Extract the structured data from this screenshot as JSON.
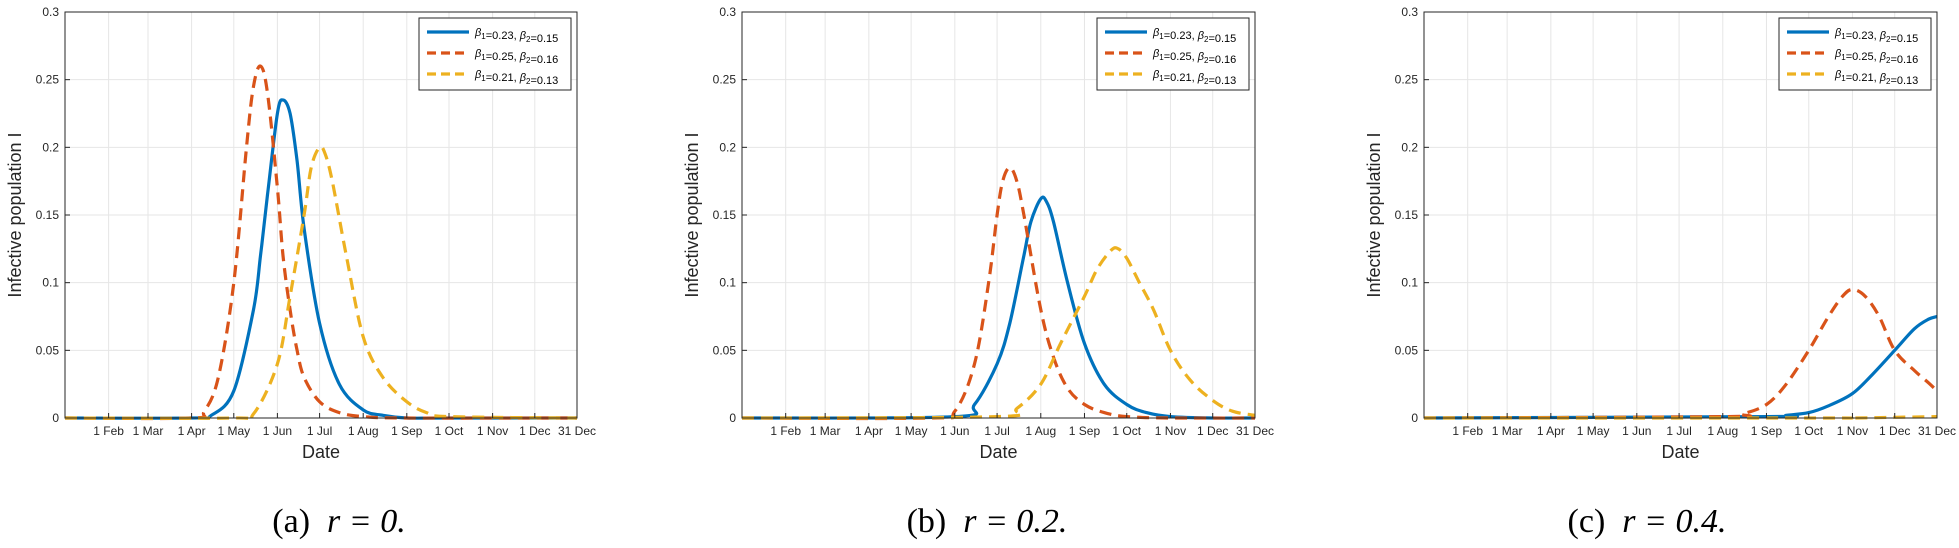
{
  "chart_data": [
    {
      "type": "line",
      "caption": {
        "label": "(a)",
        "math": "r = 0."
      },
      "ylabel": "Infective population I",
      "xlabel": "Date",
      "ylim": [
        0,
        0.3
      ],
      "yticks": [
        "0",
        "0.05",
        "0.1",
        "0.15",
        "0.2",
        "0.25",
        "0.3"
      ],
      "xlim": [
        "1 Jan",
        "31 Dec"
      ],
      "xticks": [
        "1 Feb",
        "1 Mar",
        "1 Apr",
        "1 May",
        "1 Jun",
        "1 Jul",
        "1 Aug",
        "1 Sep",
        "1 Oct",
        "1 Nov",
        "1 Dec",
        "31 Dec"
      ],
      "grid": true,
      "legend_position": "top-right",
      "series": [
        {
          "name": "β1=0.23, β2=0.15",
          "color": "#0072BD",
          "dash": "solid",
          "x": [
            "1 Jan",
            "1 Apr",
            "15 Apr",
            "1 May",
            "15 May",
            "20 May",
            "25 May",
            "1 Jun",
            "5 Jun",
            "10 Jun",
            "15 Jun",
            "20 Jun",
            "1 Jul",
            "15 Jul",
            "1 Aug",
            "15 Aug",
            "1 Sep",
            "1 Oct",
            "31 Dec"
          ],
          "y": [
            0,
            0,
            0.002,
            0.02,
            0.08,
            0.12,
            0.165,
            0.225,
            0.235,
            0.225,
            0.19,
            0.14,
            0.07,
            0.025,
            0.006,
            0.002,
            0,
            0,
            0
          ]
        },
        {
          "name": "β1=0.25, β2=0.16",
          "color": "#D95319",
          "dash": "dashed",
          "x": [
            "1 Jan",
            "1 Apr",
            "10 Apr",
            "20 Apr",
            "1 May",
            "10 May",
            "15 May",
            "20 May",
            "25 May",
            "1 Jun",
            "5 Jun",
            "10 Jun",
            "15 Jun",
            "20 Jun",
            "1 Jul",
            "15 Jul",
            "1 Aug",
            "1 Sep",
            "31 Dec"
          ],
          "y": [
            0,
            0,
            0.005,
            0.03,
            0.1,
            0.2,
            0.245,
            0.26,
            0.24,
            0.17,
            0.12,
            0.08,
            0.05,
            0.03,
            0.012,
            0.004,
            0.001,
            0,
            0
          ]
        },
        {
          "name": "β1=0.21, β2=0.13",
          "color": "#EDB120",
          "dash": "dashed",
          "x": [
            "1 Jan",
            "1 May",
            "15 May",
            "1 Jun",
            "10 Jun",
            "20 Jun",
            "25 Jun",
            "1 Jul",
            "5 Jul",
            "10 Jul",
            "20 Jul",
            "1 Aug",
            "15 Aug",
            "1 Sep",
            "15 Sep",
            "1 Oct",
            "31 Dec"
          ],
          "y": [
            0,
            0,
            0.003,
            0.04,
            0.09,
            0.15,
            0.185,
            0.2,
            0.195,
            0.175,
            0.12,
            0.06,
            0.03,
            0.012,
            0.004,
            0.001,
            0
          ]
        }
      ]
    },
    {
      "type": "line",
      "caption": {
        "label": "(b)",
        "math": "r = 0.2."
      },
      "ylabel": "Infective population I",
      "xlabel": "Date",
      "ylim": [
        0,
        0.3
      ],
      "yticks": [
        "0",
        "0.05",
        "0.1",
        "0.15",
        "0.2",
        "0.25",
        "0.3"
      ],
      "xlim": [
        "1 Jan",
        "31 Dec"
      ],
      "xticks": [
        "1 Feb",
        "1 Mar",
        "1 Apr",
        "1 May",
        "1 Jun",
        "1 Jul",
        "1 Aug",
        "1 Sep",
        "1 Oct",
        "1 Nov",
        "1 Dec",
        "31 Dec"
      ],
      "grid": true,
      "legend_position": "top-right",
      "series": [
        {
          "name": "β1=0.23, β2=0.15",
          "color": "#0072BD",
          "dash": "solid",
          "x": [
            "1 Jan",
            "1 Jun",
            "15 Jun",
            "1 Jul",
            "10 Jul",
            "20 Jul",
            "25 Jul",
            "1 Aug",
            "5 Aug",
            "10 Aug",
            "20 Aug",
            "1 Sep",
            "15 Sep",
            "1 Oct",
            "15 Oct",
            "1 Nov",
            "1 Dec",
            "31 Dec"
          ],
          "y": [
            0,
            0.001,
            0.01,
            0.04,
            0.07,
            0.12,
            0.145,
            0.162,
            0.16,
            0.145,
            0.1,
            0.055,
            0.025,
            0.01,
            0.004,
            0.001,
            0,
            0
          ]
        },
        {
          "name": "β1=0.25, β2=0.16",
          "color": "#D95319",
          "dash": "dashed",
          "x": [
            "1 Jan",
            "15 May",
            "1 Jun",
            "15 Jun",
            "25 Jun",
            "1 Jul",
            "5 Jul",
            "10 Jul",
            "15 Jul",
            "20 Jul",
            "1 Aug",
            "10 Aug",
            "20 Aug",
            "1 Sep",
            "15 Sep",
            "1 Oct",
            "1 Nov",
            "31 Dec"
          ],
          "y": [
            0,
            0,
            0.005,
            0.04,
            0.1,
            0.15,
            0.175,
            0.185,
            0.175,
            0.15,
            0.08,
            0.045,
            0.022,
            0.01,
            0.004,
            0.001,
            0,
            0
          ]
        },
        {
          "name": "β1=0.21, β2=0.13",
          "color": "#EDB120",
          "dash": "dashed",
          "x": [
            "1 Jan",
            "1 Jul",
            "15 Jul",
            "1 Aug",
            "15 Aug",
            "1 Sep",
            "10 Sep",
            "20 Sep",
            "25 Sep",
            "1 Oct",
            "10 Oct",
            "20 Oct",
            "1 Nov",
            "15 Nov",
            "1 Dec",
            "15 Dec",
            "31 Dec"
          ],
          "y": [
            0,
            0.001,
            0.007,
            0.025,
            0.055,
            0.09,
            0.11,
            0.124,
            0.125,
            0.118,
            0.1,
            0.08,
            0.05,
            0.028,
            0.013,
            0.005,
            0.002
          ]
        }
      ]
    },
    {
      "type": "line",
      "caption": {
        "label": "(c)",
        "math": "r = 0.4."
      },
      "ylabel": "Infective population I",
      "xlabel": "Date",
      "ylim": [
        0,
        0.3
      ],
      "yticks": [
        "0",
        "0.05",
        "0.1",
        "0.15",
        "0.2",
        "0.25",
        "0.3"
      ],
      "xlim": [
        "1 Jan",
        "31 Dec"
      ],
      "xticks": [
        "1 Feb",
        "1 Mar",
        "1 Apr",
        "1 May",
        "1 Jun",
        "1 Jul",
        "1 Aug",
        "1 Sep",
        "1 Oct",
        "1 Nov",
        "1 Dec",
        "31 Dec"
      ],
      "grid": true,
      "legend_position": "top-right",
      "series": [
        {
          "name": "β1=0.23, β2=0.15",
          "color": "#0072BD",
          "dash": "solid",
          "x": [
            "1 Jan",
            "1 Sep",
            "15 Sep",
            "1 Oct",
            "15 Oct",
            "1 Nov",
            "15 Nov",
            "1 Dec",
            "15 Dec",
            "25 Dec",
            "31 Dec"
          ],
          "y": [
            0,
            0.001,
            0.002,
            0.004,
            0.009,
            0.018,
            0.032,
            0.05,
            0.066,
            0.073,
            0.075
          ]
        },
        {
          "name": "β1=0.25, β2=0.16",
          "color": "#D95319",
          "dash": "dashed",
          "x": [
            "1 Jan",
            "1 Aug",
            "15 Aug",
            "1 Sep",
            "15 Sep",
            "1 Oct",
            "15 Oct",
            "25 Oct",
            "1 Nov",
            "10 Nov",
            "20 Nov",
            "1 Dec",
            "15 Dec",
            "25 Dec",
            "31 Dec"
          ],
          "y": [
            0,
            0.001,
            0.003,
            0.01,
            0.025,
            0.05,
            0.075,
            0.09,
            0.095,
            0.09,
            0.075,
            0.05,
            0.035,
            0.026,
            0.02
          ]
        },
        {
          "name": "β1=0.21, β2=0.13",
          "color": "#EDB120",
          "dash": "dashed",
          "x": [
            "1 Jan",
            "1 Oct",
            "1 Nov",
            "1 Dec",
            "31 Dec"
          ],
          "y": [
            0,
            0,
            0,
            0.0005,
            0.001
          ]
        }
      ]
    }
  ]
}
